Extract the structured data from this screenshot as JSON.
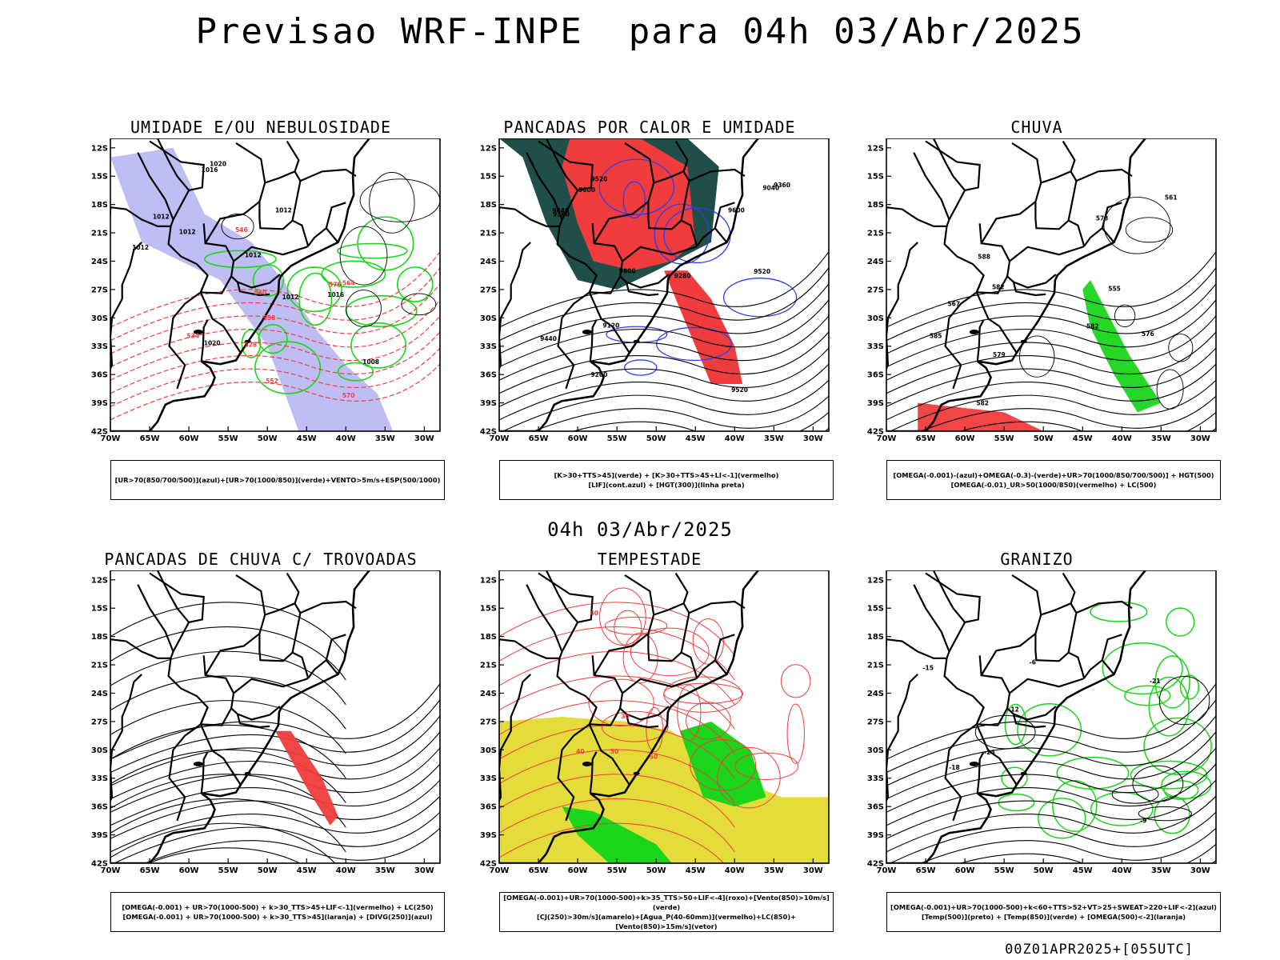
{
  "title": "Previsao WRF-INPE  para 04h 03/Abr/2025",
  "middle_title": "04h 03/Abr/2025",
  "footer": "00Z01APR2025+[055UTC]",
  "lat_ticks": [
    "12S",
    "15S",
    "18S",
    "21S",
    "24S",
    "27S",
    "30S",
    "33S",
    "36S",
    "39S",
    "42S"
  ],
  "lon_ticks": [
    "70W",
    "65W",
    "60W",
    "55W",
    "50W",
    "45W",
    "40W",
    "35W",
    "30W"
  ],
  "colors": {
    "blue": "#2f3df0",
    "green": "#1bd51b",
    "red": "#f03c3c",
    "dark_teal": "#1f4f48",
    "orange": "#f08a2a",
    "yellow": "#e3dc3b",
    "lavender": "#b3b3f2"
  },
  "panels": [
    {
      "title": "UMIDADE E/OU NEBULOSIDADE",
      "caption": [
        "[UR>70(850/700/500)](azul)+[UR>70(1000/850)](verde)+VENTO>5m/s+ESP(500/1000)"
      ],
      "labels": [
        "1012",
        "1012",
        "1012",
        "1016",
        "1020",
        "1012",
        "1012",
        "1012",
        "1008",
        "1016",
        "1020",
        "576",
        "570",
        "564",
        "558",
        "552",
        "546",
        "540",
        "534",
        "528"
      ]
    },
    {
      "title": "PANCADAS POR CALOR E UMIDADE",
      "caption": [
        "[K>30+TTS>45](verde) + [K>30+TTS>45+LI<-1](vermelho)",
        "[LIF](cont.azul) + [HGT(300)](linha preta)"
      ],
      "labels": [
        "9600",
        "9520",
        "9600",
        "9520",
        "9440",
        "9360",
        "9280",
        "9200",
        "9120",
        "9040",
        "9600",
        "9520",
        "9440",
        "9360"
      ]
    },
    {
      "title": "CHUVA",
      "caption": [
        "[OMEGA(-0.001)-(azul)+OMEGA(-0.3)-(verde)+UR>70(1000/850/700/500)] + HGT(500)",
        "[OMEGA(-0.01)_UR>50(1000/850)(vermelho) + LC(500)"
      ],
      "labels": [
        "582",
        "582",
        "582",
        "579",
        "576",
        "573",
        "567",
        "561",
        "555",
        "585",
        "588"
      ]
    },
    {
      "title": "PANCADAS DE CHUVA C/ TROVOADAS",
      "caption": [
        "[OMEGA(-0.001) + UR>70(1000-500) + k>30_TTS>45+LIF<-1](vermelho) + LC(250)",
        "[OMEGA(-0.001) + UR>70(1000-500) + k>30_TTS>45](laranja) + [DIVG(250)](azul)"
      ],
      "labels": []
    },
    {
      "title": "TEMPESTADE",
      "caption": [
        "[OMEGA(-0.001)+UR>70(1000-500)+k>35_TTS>50+LIF<-4](roxo)+[Vento(850)>10m/s](verde)",
        "[CJ(250)>30m/s](amarelo)+[Agua_P(40-60mm)](vermelho)+LC(850)+[Vento(850)>15m/s](vetor)"
      ],
      "labels": [
        "50",
        "40",
        "40",
        "30",
        "50"
      ]
    },
    {
      "title": "GRANIZO",
      "caption": [
        "[OMEGA(-0.001)+UR>70(1000-500)+k<60+TTS>52+VT>25+SWEAT>220+LIF<-2](azul)",
        "[Temp(500)](preto) + [Temp(850)](verde) + [OMEGA(500)<-2](laranja)"
      ],
      "labels": [
        "-12",
        "-15",
        "-18",
        "-21",
        "-24",
        "-6",
        "-9"
      ]
    }
  ]
}
